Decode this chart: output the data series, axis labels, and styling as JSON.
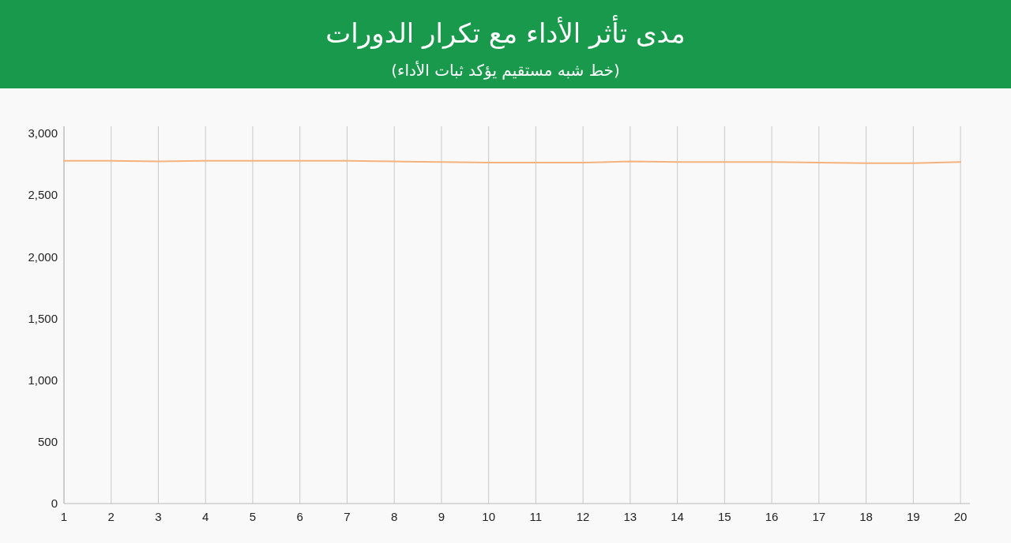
{
  "chart_data": {
    "type": "line",
    "title": "مدى تأثر الأداء مع تكرار الدورات",
    "subtitle": "(خط شبه مستقيم يؤكد ثبات الأداء)",
    "x": [
      1,
      2,
      3,
      4,
      5,
      6,
      7,
      8,
      9,
      10,
      11,
      12,
      13,
      14,
      15,
      16,
      17,
      18,
      19,
      20
    ],
    "series": [
      {
        "color": "#f5b27c",
        "values": [
          2780,
          2780,
          2775,
          2780,
          2780,
          2780,
          2780,
          2775,
          2770,
          2765,
          2765,
          2765,
          2775,
          2770,
          2770,
          2770,
          2765,
          2760,
          2760,
          2770
        ]
      }
    ],
    "xlim": [
      1,
      20.2
    ],
    "xticks": [
      1,
      2,
      3,
      4,
      5,
      6,
      7,
      8,
      9,
      10,
      11,
      12,
      13,
      14,
      15,
      16,
      17,
      18,
      19,
      20
    ],
    "ylim": [
      0,
      3060
    ],
    "yticks": [
      0,
      500,
      {
        "value": 1000,
        "label": "1,000"
      },
      {
        "value": 1500,
        "label": "1,500"
      },
      {
        "value": 2000,
        "label": "2,000"
      },
      {
        "value": 2500,
        "label": "2,500"
      },
      {
        "value": 3000,
        "label": "3,000"
      }
    ],
    "grid": "x"
  }
}
